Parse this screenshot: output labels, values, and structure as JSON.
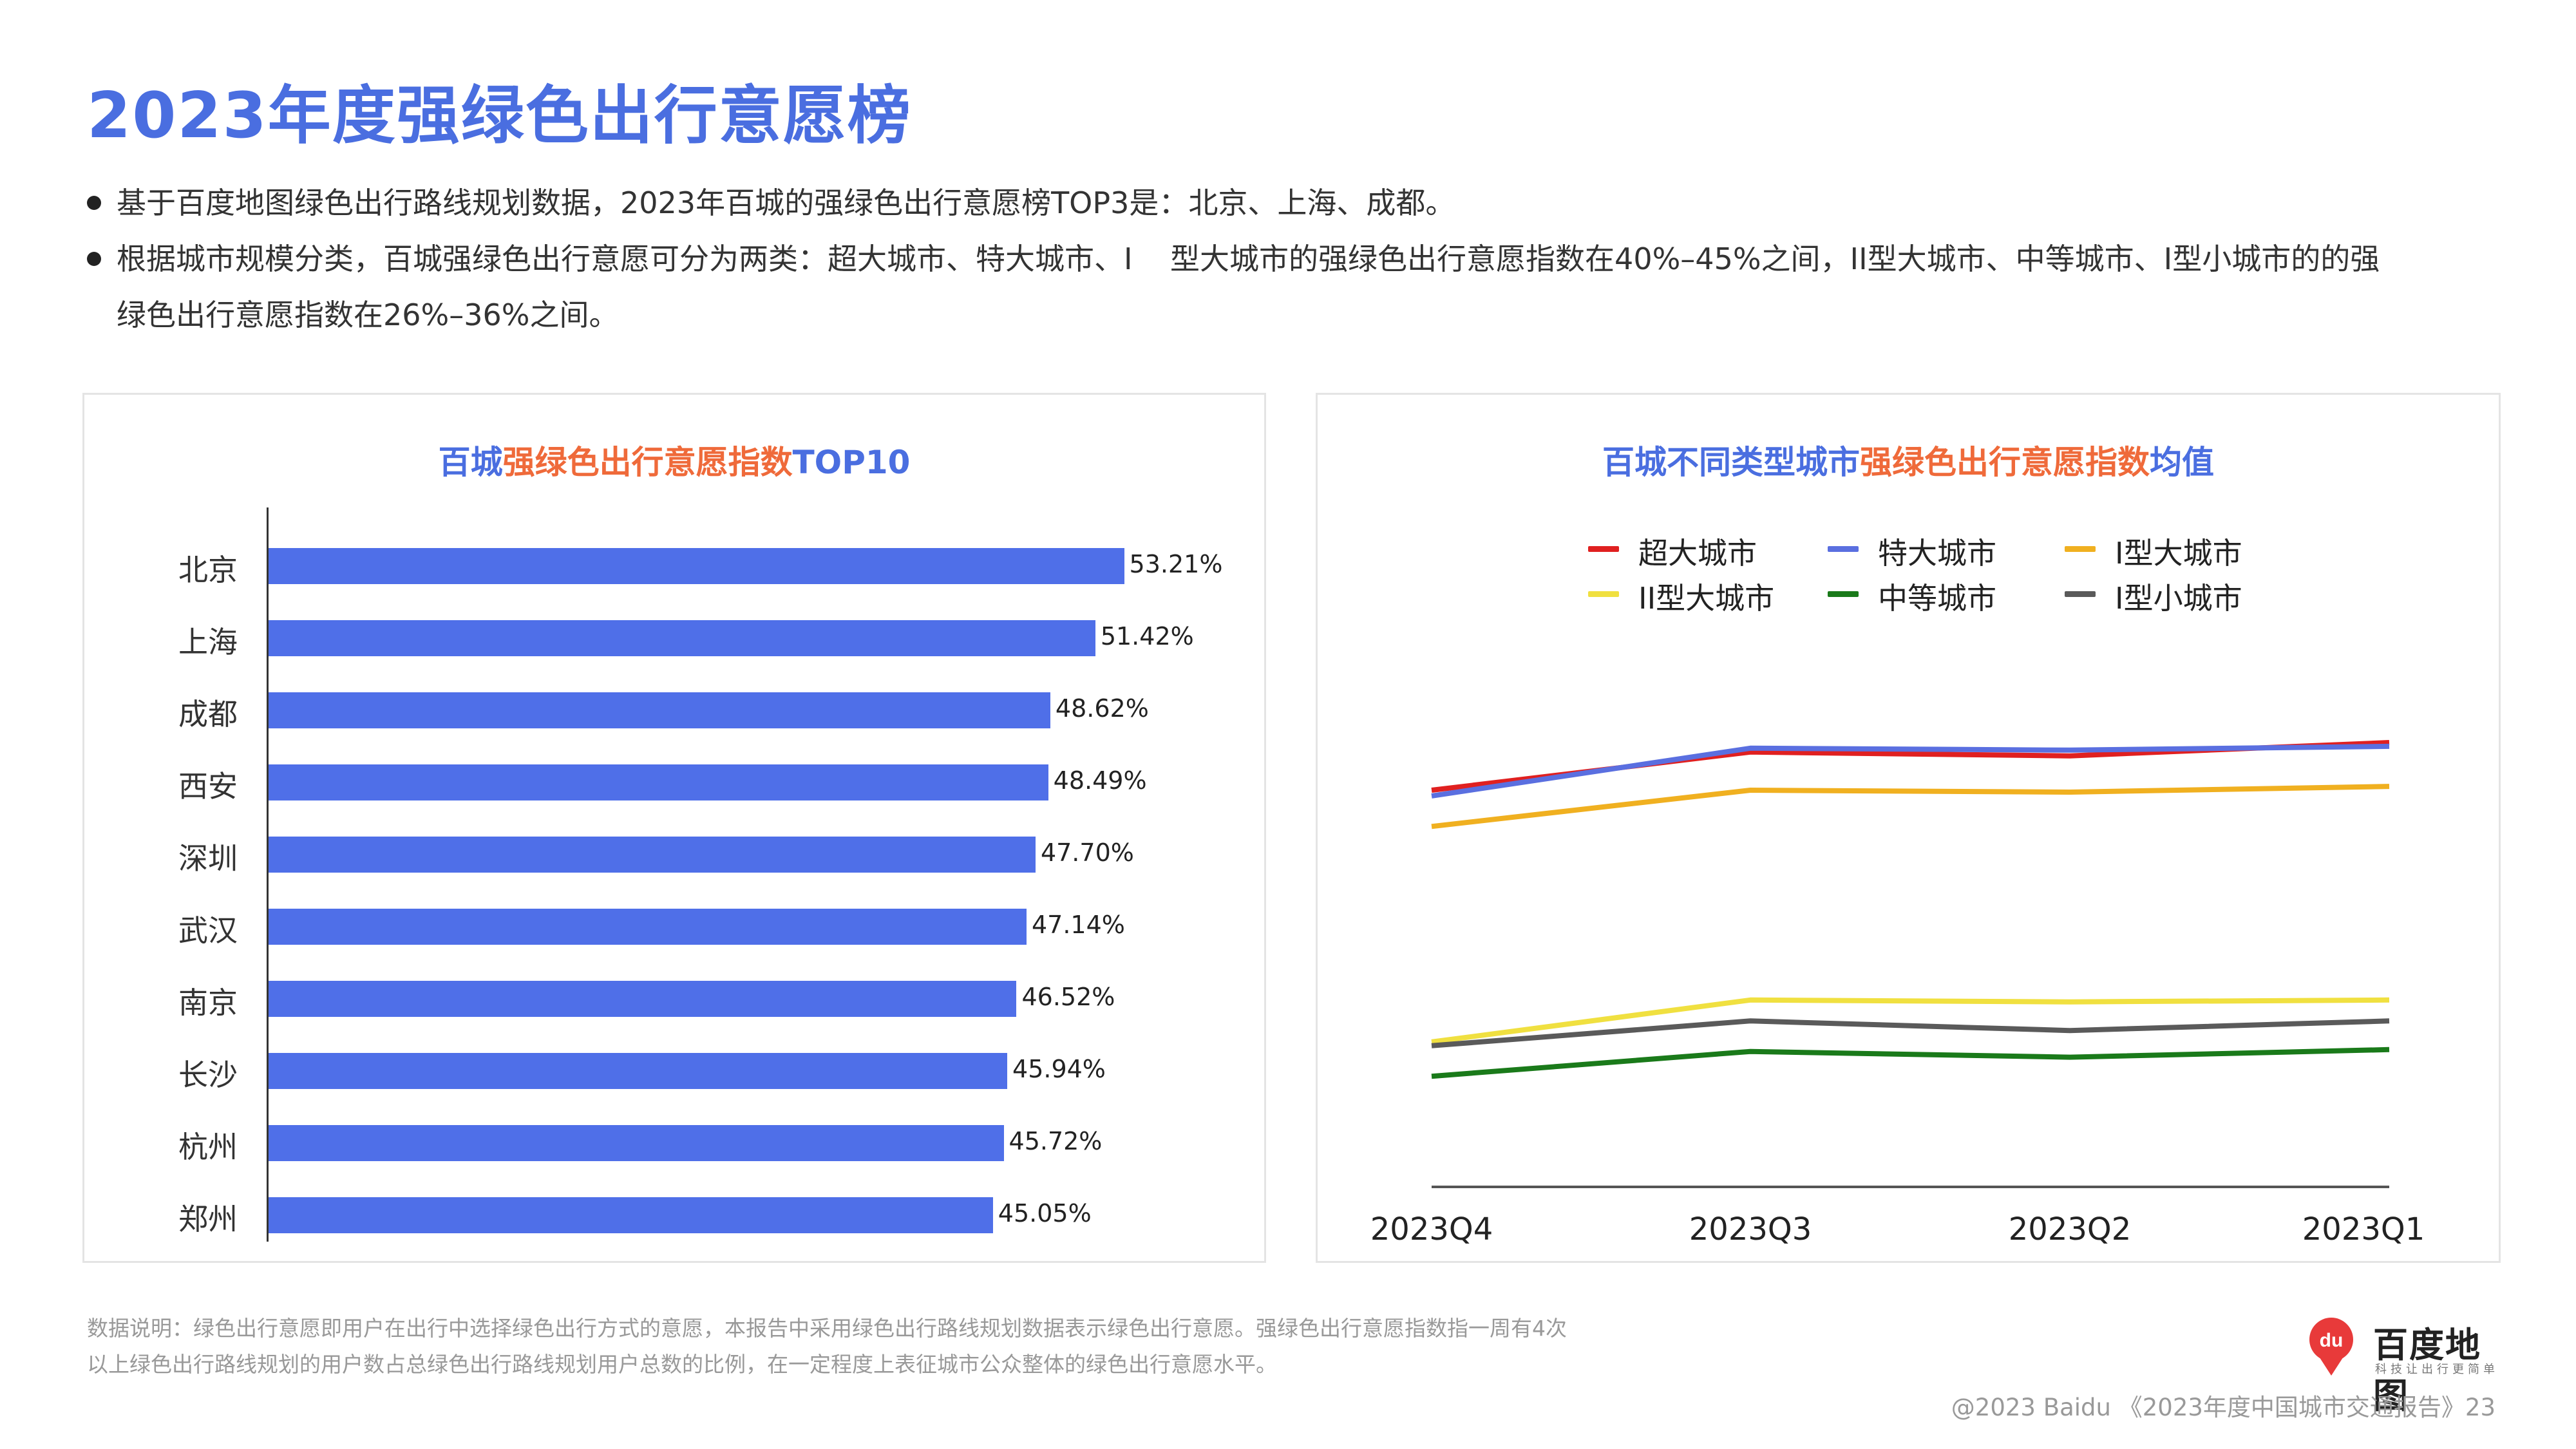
{
  "page": {
    "title": "2023年度强绿色出行意愿榜",
    "bullets": [
      {
        "lines": [
          "基于百度地图绿色出行路线规划数据，2023年百城的强绿色出行意愿榜TOP3是：北京、上海、成都。"
        ]
      },
      {
        "lines": [
          "根据城市规模分类，百城强绿色出行意愿可分为两类：超大城市、特大城市、I    型大城市的强绿色出行意愿指数在40%–45%之间，II型大城市、中等城市、I型小城市的的强",
          "绿色出行意愿指数在26%–36%之间。"
        ]
      }
    ],
    "footnote": [
      "数据说明：绿色出行意愿即用户在出行中选择绿色出行方式的意愿，本报告中采用绿色出行路线规划数据表示绿色出行意愿。强绿色出行意愿指数指一周有4次",
      "以上绿色出行路线规划的用户数占总绿色出行路线规划用户总数的比例，在一定程度上表征城市公众整体的绿色出行意愿水平。"
    ],
    "copyright": "@2023 Baidu 《2023年度中国城市交通报告》23",
    "logo": {
      "name": "百度地图",
      "badge": "du",
      "tagline": "科技让出行更简单"
    }
  },
  "colors": {
    "accent": "#4a6ee0",
    "highlight": "#ef6a3a",
    "bar": "#4f6fe8"
  },
  "chart_data": [
    {
      "type": "bar",
      "orientation": "horizontal",
      "title_parts": [
        {
          "text": "百城",
          "color": "#4a6ee0"
        },
        {
          "text": "强绿色出行意愿指数",
          "color": "#ef6a3a"
        },
        {
          "text": "TOP10",
          "color": "#4a6ee0"
        }
      ],
      "categories": [
        "北京",
        "上海",
        "成都",
        "西安",
        "深圳",
        "武汉",
        "南京",
        "长沙",
        "杭州",
        "郑州"
      ],
      "values": [
        53.21,
        51.42,
        48.62,
        48.49,
        47.7,
        47.14,
        46.52,
        45.94,
        45.72,
        45.05
      ],
      "value_labels": [
        "53.21%",
        "51.42%",
        "48.62%",
        "48.49%",
        "47.70%",
        "47.14%",
        "46.52%",
        "45.94%",
        "45.72%",
        "45.05%"
      ],
      "xlim": [
        0,
        62
      ]
    },
    {
      "type": "line",
      "title_parts": [
        {
          "text": "百城不同类型城市",
          "color": "#4a6ee0"
        },
        {
          "text": "强绿色出行意愿指数",
          "color": "#ef6a3a"
        },
        {
          "text": "均值",
          "color": "#4a6ee0"
        }
      ],
      "x": [
        "2023Q4",
        "2023Q3",
        "2023Q2",
        "2023Q1"
      ],
      "ylim": [
        22,
        48
      ],
      "legend_position": "top-center",
      "series": [
        {
          "name": "超大城市",
          "color": "#e02020",
          "values": [
            42.8,
            44.8,
            44.6,
            45.3
          ]
        },
        {
          "name": "特大城市",
          "color": "#5a6fe0",
          "values": [
            42.5,
            45.0,
            44.9,
            45.1
          ]
        },
        {
          "name": "I型大城市",
          "color": "#f0b020",
          "values": [
            40.9,
            42.8,
            42.7,
            43.0
          ]
        },
        {
          "name": "II型大城市",
          "color": "#f0e040",
          "values": [
            29.6,
            31.8,
            31.7,
            31.8
          ]
        },
        {
          "name": "中等城市",
          "color": "#1a7a1a",
          "values": [
            27.8,
            29.1,
            28.8,
            29.2
          ]
        },
        {
          "name": "I型小城市",
          "color": "#5a5a5a",
          "values": [
            29.4,
            30.7,
            30.2,
            30.7
          ]
        }
      ]
    }
  ]
}
